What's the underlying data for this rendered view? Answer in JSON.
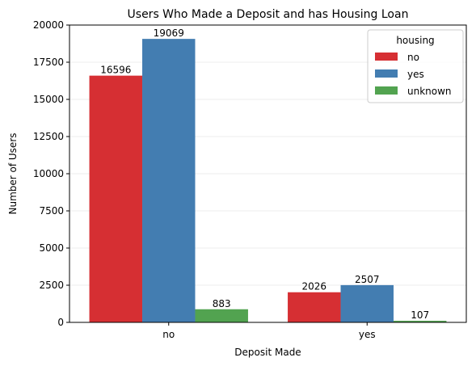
{
  "chart_data": {
    "type": "bar",
    "title": "Users Who Made a Deposit and has Housing Loan",
    "xlabel": "Deposit Made",
    "ylabel": "Number of Users",
    "categories": [
      "no",
      "yes"
    ],
    "ylim": [
      0,
      20000
    ],
    "yticks": [
      "0",
      "2500",
      "5000",
      "7500",
      "10000",
      "12500",
      "15000",
      "17500",
      "20000"
    ],
    "grid": "horizontal",
    "legend": {
      "title": "housing",
      "placement": "top-right"
    },
    "series": [
      {
        "name": "no",
        "color": "#d62f33",
        "values": [
          16596,
          2026
        ],
        "labels": [
          "16596",
          "2026"
        ]
      },
      {
        "name": "yes",
        "color": "#437db1",
        "values": [
          19069,
          2507
        ],
        "labels": [
          "19069",
          "2507"
        ]
      },
      {
        "name": "unknown",
        "color": "#52a350",
        "values": [
          883,
          107
        ],
        "labels": [
          "883",
          "107"
        ]
      }
    ]
  }
}
